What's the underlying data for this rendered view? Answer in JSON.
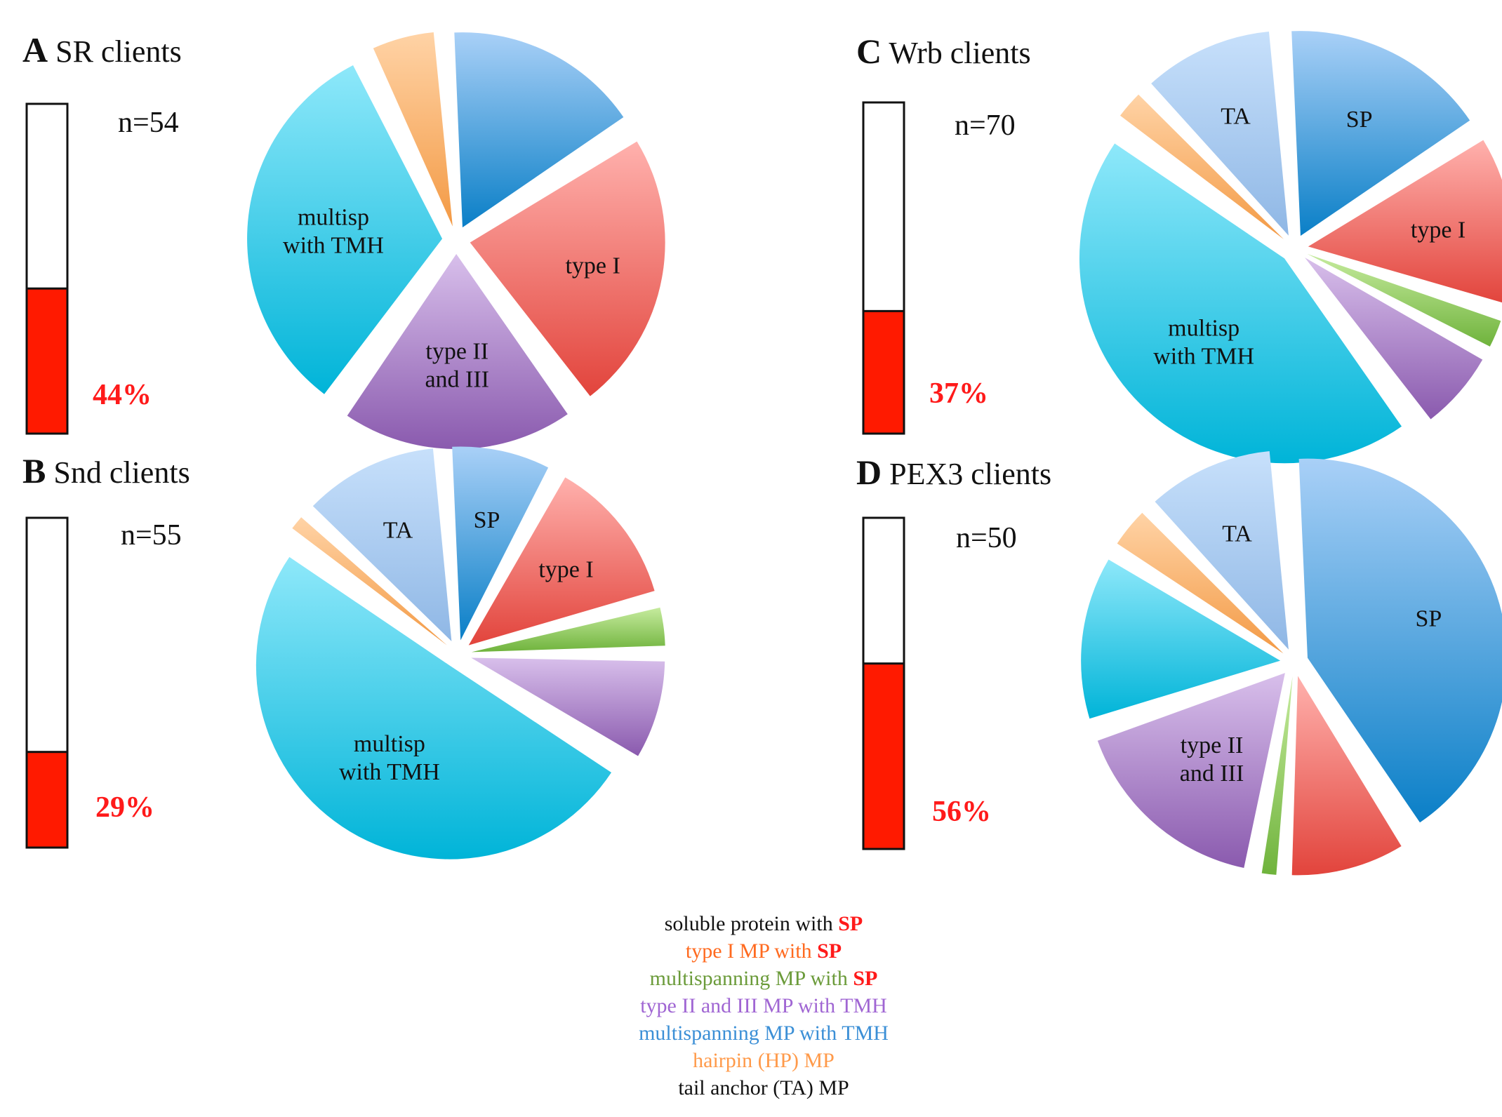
{
  "colors": {
    "bar_fill": "#ff1a00",
    "bar_border": "#111111",
    "percent_text": "#ff1a1a"
  },
  "slice_palette": {
    "SP": [
      "#a9d0f7",
      "#0a7fc7"
    ],
    "typeI": [
      "#ffb1ad",
      "#e2443c"
    ],
    "multiSP": [
      "#c6eb9e",
      "#6fb33c"
    ],
    "typeII": [
      "#d8bfeb",
      "#8a5aae"
    ],
    "multiTMH": [
      "#8ee8fa",
      "#00b4d8"
    ],
    "HP": [
      "#ffd3a6",
      "#f39a45"
    ],
    "TA": [
      "#c7e0fb",
      "#8fb7e5"
    ]
  },
  "legend": [
    {
      "text": "soluble protein with ",
      "highlight": "SP",
      "color": "#111111"
    },
    {
      "text": "type I MP with  ",
      "highlight": "SP",
      "color": "#ff6a1f"
    },
    {
      "text": "multispanning MP with ",
      "highlight": "SP",
      "color": "#6b9b3a"
    },
    {
      "text": "type II and III MP with TMH",
      "highlight": "",
      "color": "#a066d3"
    },
    {
      "text": "multispanning MP with TMH",
      "highlight": "",
      "color": "#3b8fd6"
    },
    {
      "text": "hairpin (HP) MP",
      "highlight": "",
      "color": "#ff9a4a"
    },
    {
      "text": "tail anchor (TA) MP",
      "highlight": "",
      "color": "#111111"
    }
  ],
  "chart_data": [
    {
      "type": "pie",
      "panel": "A",
      "title": "SR clients",
      "n_label": "n=54",
      "bar_percent_label": "44%",
      "bar_fraction": 0.44,
      "slices": [
        {
          "category": "SP",
          "value": 17,
          "label": ""
        },
        {
          "category": "typeI",
          "value": 24,
          "label": "type I"
        },
        {
          "category": "typeII",
          "value": 20,
          "label": "type II|and III"
        },
        {
          "category": "multiTMH",
          "value": 33,
          "label": "multisp|with TMH"
        },
        {
          "category": "HP",
          "value": 6,
          "label": ""
        }
      ]
    },
    {
      "type": "pie",
      "panel": "B",
      "title": "Snd clients",
      "n_label": "n=55",
      "bar_percent_label": "29%",
      "bar_fraction": 0.29,
      "slices": [
        {
          "category": "SP",
          "value": 9,
          "label": "SP"
        },
        {
          "category": "typeI",
          "value": 13,
          "label": "type I"
        },
        {
          "category": "multiSP",
          "value": 4,
          "label": ""
        },
        {
          "category": "typeII",
          "value": 9,
          "label": ""
        },
        {
          "category": "multiTMH",
          "value": 51,
          "label": "multisp|with TMH"
        },
        {
          "category": "HP",
          "value": 2,
          "label": ""
        },
        {
          "category": "TA",
          "value": 12,
          "label": "TA"
        }
      ]
    },
    {
      "type": "pie",
      "panel": "C",
      "title": "Wrb clients",
      "n_label": "n=70",
      "bar_percent_label": "37%",
      "bar_fraction": 0.37,
      "slices": [
        {
          "category": "SP",
          "value": 17,
          "label": "SP"
        },
        {
          "category": "typeI",
          "value": 14,
          "label": "type I"
        },
        {
          "category": "multiSP",
          "value": 3,
          "label": ""
        },
        {
          "category": "typeII",
          "value": 7,
          "label": ""
        },
        {
          "category": "multiTMH",
          "value": 45,
          "label": "multisp|with TMH"
        },
        {
          "category": "HP",
          "value": 3,
          "label": ""
        },
        {
          "category": "TA",
          "value": 11,
          "label": "TA"
        }
      ]
    },
    {
      "type": "pie",
      "panel": "D",
      "title": "PEX3 clients",
      "n_label": "n=50",
      "bar_percent_label": "56%",
      "bar_fraction": 0.56,
      "slices": [
        {
          "category": "SP",
          "value": 42,
          "label": "SP"
        },
        {
          "category": "typeI",
          "value": 10,
          "label": ""
        },
        {
          "category": "multiSP",
          "value": 2,
          "label": ""
        },
        {
          "category": "typeII",
          "value": 17,
          "label": "type II|and III"
        },
        {
          "category": "multiTMH",
          "value": 14,
          "label": ""
        },
        {
          "category": "HP",
          "value": 4,
          "label": ""
        },
        {
          "category": "TA",
          "value": 11,
          "label": "TA"
        }
      ]
    }
  ]
}
